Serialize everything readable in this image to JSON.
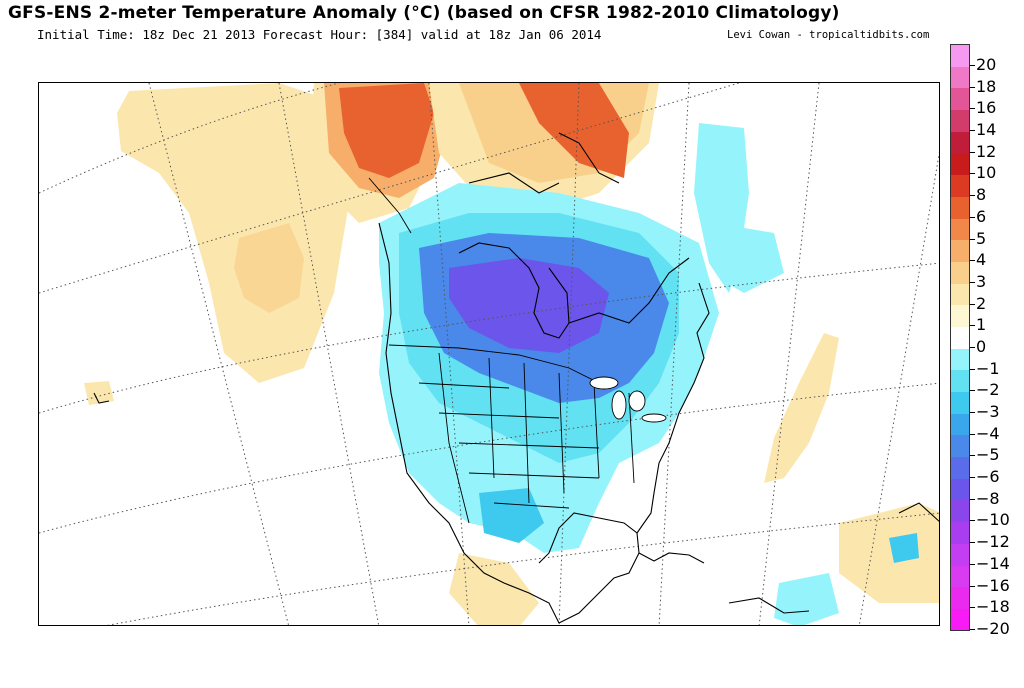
{
  "header": {
    "title": "GFS-ENS 2-meter Temperature Anomaly (°C) (based on CFSR 1982-2010 Climatology)",
    "subtitle": "Initial Time: 18z Dec 21 2013 Forecast Hour: [384] valid at 18z Jan 06 2014",
    "credit": "Levi Cowan - tropicaltidbits.com"
  },
  "legend": {
    "levels": [
      {
        "label": "20",
        "color": "#f59af0"
      },
      {
        "label": "18",
        "color": "#ef79c7"
      },
      {
        "label": "16",
        "color": "#e25596"
      },
      {
        "label": "14",
        "color": "#d23c6c"
      },
      {
        "label": "12",
        "color": "#c01d3a"
      },
      {
        "label": "10",
        "color": "#c81b1b"
      },
      {
        "label": "8",
        "color": "#dc3a22"
      },
      {
        "label": "6",
        "color": "#e8622f"
      },
      {
        "label": "5",
        "color": "#f1884a"
      },
      {
        "label": "4",
        "color": "#f6ae6a"
      },
      {
        "label": "3",
        "color": "#f8d08c"
      },
      {
        "label": "2",
        "color": "#fbe7ad"
      },
      {
        "label": "1",
        "color": "#fdf7d4"
      },
      {
        "label": "0",
        "color": "#ffffff"
      },
      {
        "label": "−1",
        "color": "#95f3fb"
      },
      {
        "label": "−2",
        "color": "#62e1f3"
      },
      {
        "label": "−3",
        "color": "#3ec9ee"
      },
      {
        "label": "−4",
        "color": "#3aa7ec"
      },
      {
        "label": "−5",
        "color": "#4a88ea"
      },
      {
        "label": "−6",
        "color": "#5b6ceb"
      },
      {
        "label": "−8",
        "color": "#6b55ea"
      },
      {
        "label": "−10",
        "color": "#8a46ec"
      },
      {
        "label": "−12",
        "color": "#a83ef0"
      },
      {
        "label": "−14",
        "color": "#c33ef3"
      },
      {
        "label": "−16",
        "color": "#d93bf0"
      },
      {
        "label": "−18",
        "color": "#ea2aee"
      },
      {
        "label": "−20",
        "color": "#f81bf6"
      }
    ]
  }
}
